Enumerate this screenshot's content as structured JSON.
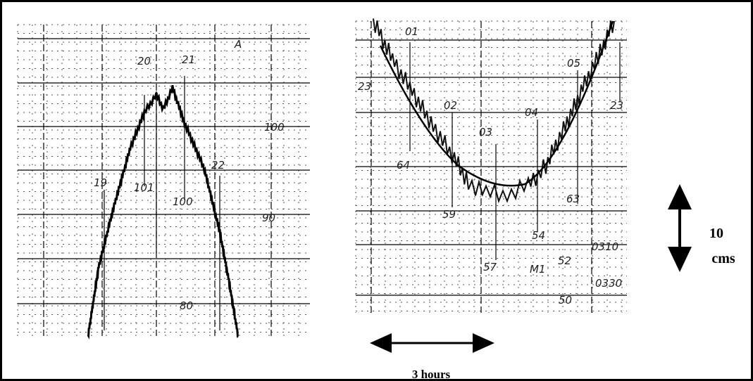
{
  "left_record": {
    "annotations": [
      "20",
      "21",
      "19",
      "101",
      "100",
      "22",
      "100",
      "90",
      "80",
      "A"
    ]
  },
  "right_record": {
    "annotations": [
      "01",
      "23",
      "02",
      "03",
      "04",
      "05",
      "23",
      "64",
      "59",
      "57",
      "54",
      "63",
      "M1",
      "52",
      "0310",
      "50",
      "0330"
    ]
  },
  "scale": {
    "vertical_value": "10",
    "vertical_unit": "cms",
    "horizontal_label": "3 hours"
  }
}
